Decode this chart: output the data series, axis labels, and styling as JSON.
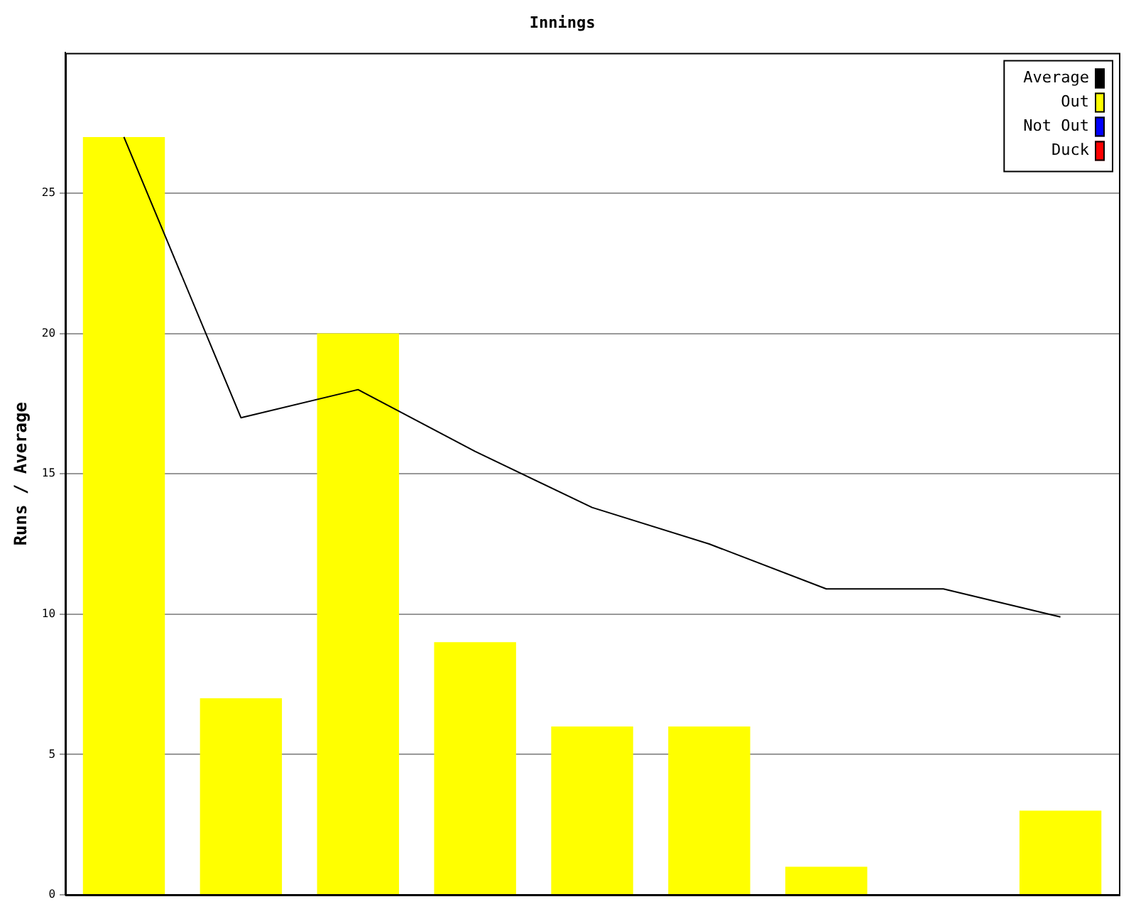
{
  "chart_data": {
    "type": "bar",
    "title": "Innings",
    "ylabel": "Runs / Average",
    "categories": [
      null,
      null,
      null,
      null,
      null,
      null,
      null,
      null,
      null
    ],
    "series": [
      {
        "name": "Average",
        "type": "line",
        "color": "#000000",
        "values": [
          27,
          17,
          18,
          15.8,
          13.8,
          12.5,
          10.9,
          10.9,
          9.9
        ]
      },
      {
        "name": "Out",
        "color": "#ffff00",
        "values": [
          27,
          7,
          20,
          9,
          6,
          6,
          1,
          null,
          3
        ]
      },
      {
        "name": "Not Out",
        "color": "#0000ff",
        "values": [
          null,
          null,
          null,
          null,
          null,
          null,
          null,
          0,
          null
        ]
      },
      {
        "name": "Duck",
        "color": "#ff0000",
        "values": [
          null,
          null,
          null,
          null,
          null,
          null,
          null,
          null,
          null
        ]
      }
    ],
    "stacked": true,
    "ylim": [
      0,
      30
    ],
    "yticks": [
      0,
      5,
      10,
      15,
      20,
      25
    ],
    "grid": "y",
    "legend": "top right",
    "tick_labels": "y",
    "marker": "none",
    "line_style": "solid"
  }
}
